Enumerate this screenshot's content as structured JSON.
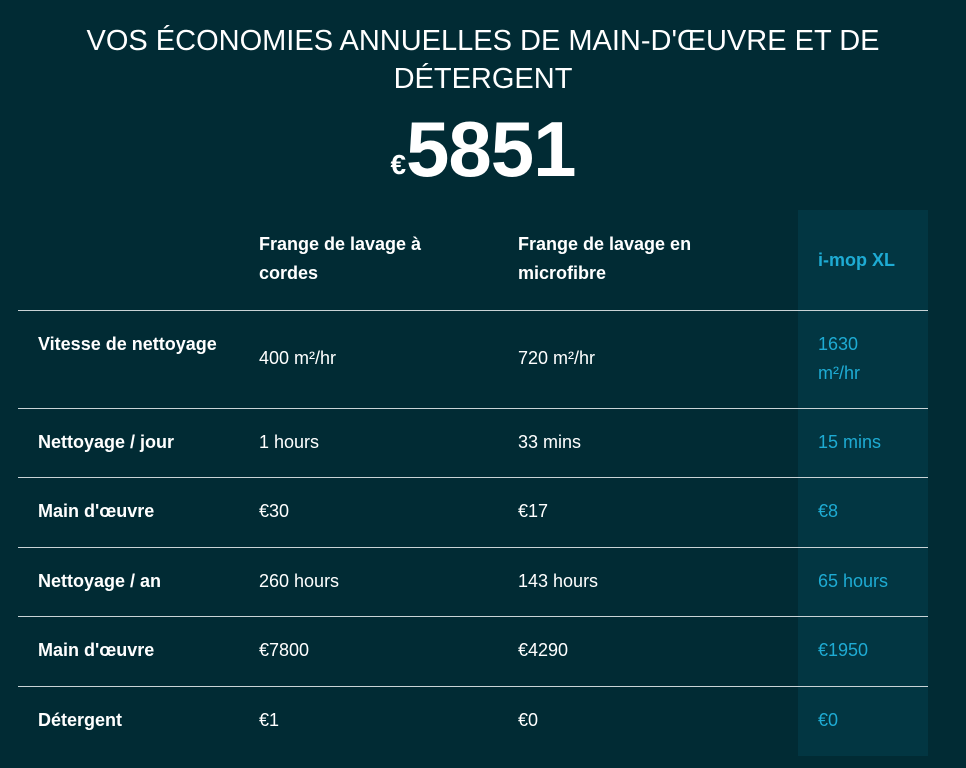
{
  "title": "VOS ÉCONOMIES ANNUELLES DE MAIN-D'ŒUVRE ET DE DÉTERGENT",
  "savings": {
    "currency": "€",
    "amount": "5851"
  },
  "colors": {
    "background": "#012b34",
    "highlight_column": "#023642",
    "accent": "#1eabd3"
  },
  "table": {
    "headers": [
      "",
      "Frange de lavage à cordes",
      "Frange de lavage en microfibre",
      "i-mop XL"
    ],
    "rows": [
      {
        "label": "Vitesse de nettoyage",
        "strings": "400 m²/hr",
        "microfibre": "720 m²/hr",
        "imop": "1630 m²/hr"
      },
      {
        "label": "Nettoyage / jour",
        "strings": "1 hours",
        "microfibre": "33 mins",
        "imop": "15 mins"
      },
      {
        "label": "Main d'œuvre",
        "strings": "€30",
        "microfibre": "€17",
        "imop": "€8"
      },
      {
        "label": "Nettoyage / an",
        "strings": "260 hours",
        "microfibre": "143 hours",
        "imop": "65 hours"
      },
      {
        "label": "Main d'œuvre",
        "strings": "€7800",
        "microfibre": "€4290",
        "imop": "€1950"
      },
      {
        "label": "Détergent",
        "strings": "€1",
        "microfibre": "€0",
        "imop": "€0"
      }
    ]
  }
}
